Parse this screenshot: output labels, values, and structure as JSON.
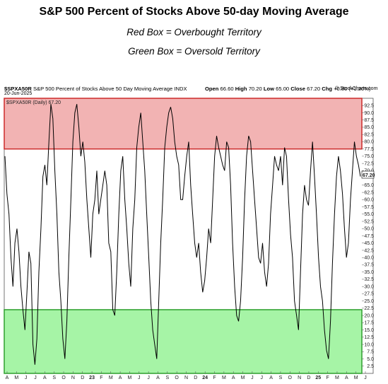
{
  "title": "S&P 500 Percent of Stocks Above 50-day Moving Average",
  "subtitle_red": "Red Box = Overbought Territory",
  "subtitle_green": "Green Box = Oversold Territory",
  "header": {
    "symbol": "$SPXA50R",
    "description": "S&P 500 Percent of Stocks Above 50 Day Moving Average",
    "exchange": "INDX",
    "date": "20-Jun-2025",
    "legend": "$SPXA50R (Daily) 67.20",
    "watermark": "© StockCharts.com",
    "open_label": "Open",
    "open": "66.60",
    "high_label": "High",
    "high": "70.20",
    "low_label": "Low",
    "low": "65.00",
    "close_label": "Close",
    "close": "67.20",
    "chg_label": "Chg",
    "chg": "+0.80 (+1.20%)",
    "last_value": "67.20"
  },
  "colors": {
    "overbought": "#f2b3b3",
    "overbought_line": "#cc2a2a",
    "oversold": "#a6f4a6",
    "oversold_line": "#2fa02f",
    "line": "#000000"
  },
  "chart_data": {
    "type": "line",
    "series": [
      {
        "values": [
          75,
          62,
          55,
          40,
          30,
          45,
          50,
          42,
          30,
          22,
          15,
          28,
          42,
          38,
          10,
          3,
          12,
          35,
          50,
          68,
          72,
          65,
          80,
          93,
          88,
          70,
          55,
          35,
          25,
          12,
          5,
          18,
          40,
          60,
          80,
          90,
          93,
          85,
          75,
          80,
          73,
          60,
          50,
          40,
          55,
          60,
          70,
          55,
          60,
          65,
          70,
          65,
          45,
          42,
          22,
          20,
          35,
          55,
          70,
          75,
          60,
          50,
          38,
          30,
          50,
          60,
          78,
          85,
          90,
          80,
          70,
          55,
          40,
          25,
          15,
          10,
          5,
          25,
          45,
          60,
          78,
          85,
          90,
          92,
          88,
          80,
          75,
          72,
          60,
          60,
          68,
          75,
          80,
          65,
          55,
          45,
          40,
          45,
          35,
          28,
          32,
          40,
          50,
          45,
          60,
          75,
          82,
          78,
          75,
          72,
          70,
          80,
          78,
          65,
          45,
          30,
          20,
          18,
          25,
          40,
          60,
          75,
          82,
          80,
          70,
          60,
          50,
          40,
          38,
          45,
          35,
          30,
          38,
          55,
          65,
          75,
          72,
          70,
          75,
          65,
          78,
          75,
          60,
          48,
          40,
          25,
          20,
          15,
          35,
          55,
          65,
          60,
          58,
          70,
          80,
          68,
          55,
          40,
          30,
          25,
          15,
          8,
          5,
          18,
          38,
          55,
          68,
          75,
          70,
          62,
          50,
          40,
          45,
          60,
          70,
          80,
          75,
          72,
          68
        ],
        "last": 67.2
      }
    ],
    "x_tick_labels": [
      "A",
      "M",
      "J",
      "J",
      "A",
      "S",
      "O",
      "N",
      "D",
      "23",
      "F",
      "M",
      "A",
      "M",
      "J",
      "J",
      "A",
      "S",
      "O",
      "N",
      "D",
      "24",
      "F",
      "M",
      "A",
      "M",
      "J",
      "J",
      "A",
      "S",
      "O",
      "N",
      "D",
      "25",
      "F",
      "M",
      "A",
      "M",
      "J"
    ],
    "y_tick_labels": [
      "2.5",
      "5.0",
      "7.5",
      "10.0",
      "12.5",
      "15.0",
      "17.5",
      "20.0",
      "22.5",
      "25.0",
      "27.5",
      "30.0",
      "32.5",
      "35.0",
      "37.5",
      "40.0",
      "42.5",
      "45.0",
      "47.5",
      "50.0",
      "52.5",
      "55.0",
      "57.5",
      "60.0",
      "62.5",
      "65.0",
      "70.0",
      "72.5",
      "75.0",
      "77.5",
      "80.0",
      "82.5",
      "85.0",
      "87.5",
      "90.0",
      "92.5"
    ],
    "overbought_zone": [
      77.5,
      100
    ],
    "oversold_zone": [
      0,
      22
    ],
    "ylim": [
      0,
      95
    ]
  }
}
